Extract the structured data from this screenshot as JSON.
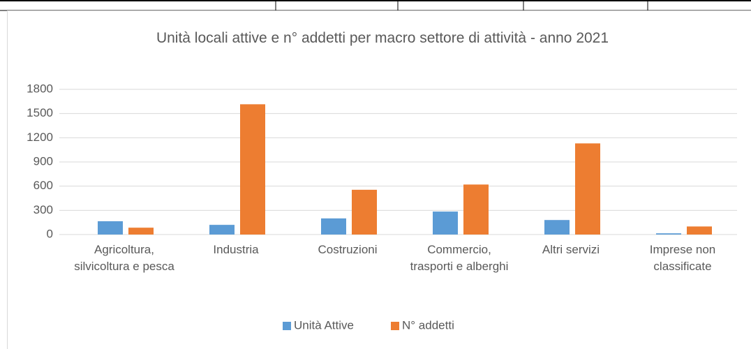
{
  "chart_data": {
    "type": "bar",
    "title": "Unità locali attive e n° addetti per macro settore di attività - anno 2021",
    "categories": [
      "Agricoltura, silvicoltura e pesca",
      "Industria",
      "Costruzioni",
      "Commercio, trasporti e alberghi",
      "Altri servizi",
      "Imprese non classificate"
    ],
    "series": [
      {
        "name": "Unità Attive",
        "color": "#5b9bd5",
        "values": [
          165,
          120,
          200,
          285,
          180,
          15
        ]
      },
      {
        "name": "N° addetti",
        "color": "#ed7d31",
        "values": [
          85,
          1615,
          555,
          620,
          1130,
          100
        ]
      }
    ],
    "ylim": [
      0,
      1800
    ],
    "yticks": [
      0,
      300,
      600,
      900,
      1200,
      1500,
      1800
    ],
    "grid": true,
    "legend": "bottom"
  }
}
